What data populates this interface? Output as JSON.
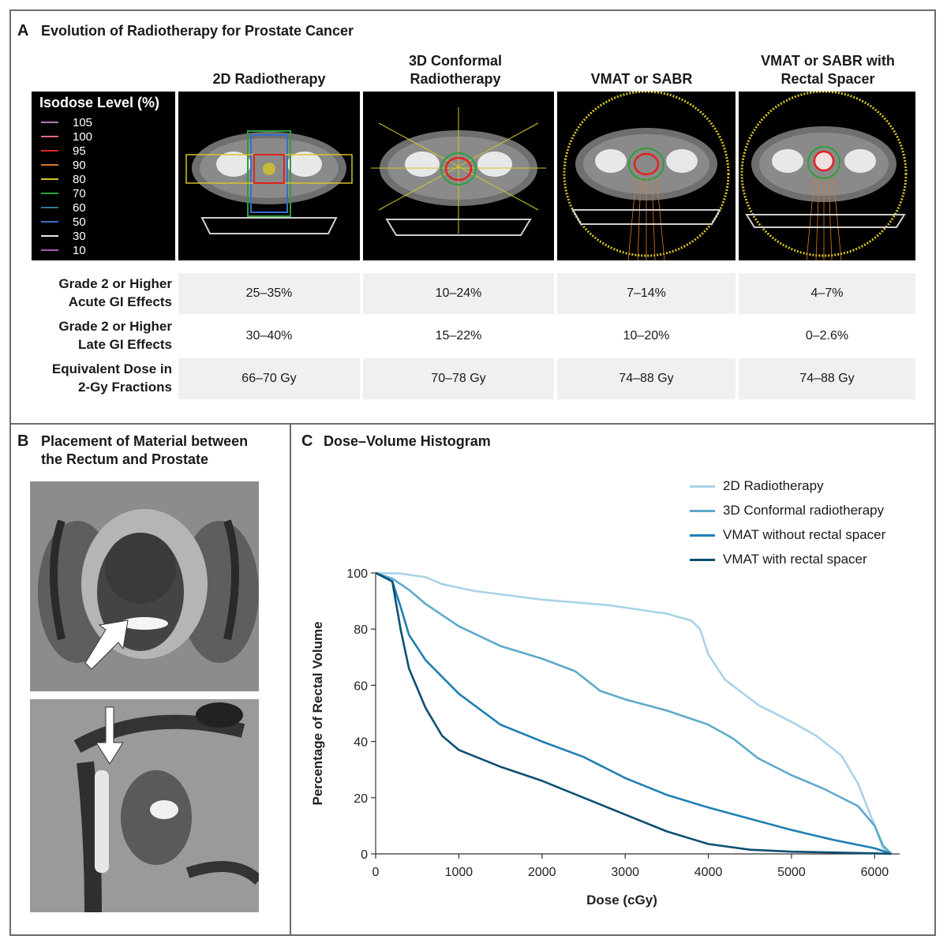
{
  "panel_a": {
    "letter": "A",
    "title": "Evolution of Radiotherapy for Prostate Cancer",
    "columns": [
      {
        "line1": "2D Radiotherapy",
        "line2": ""
      },
      {
        "line1": "3D Conformal",
        "line2": "Radiotherapy"
      },
      {
        "line1": "VMAT or SABR",
        "line2": ""
      },
      {
        "line1": "VMAT or SABR with",
        "line2": "Rectal Spacer"
      }
    ],
    "isodose_legend": {
      "title": "Isodose Level (%)",
      "levels": [
        {
          "value": "105",
          "color": "#b07ab8"
        },
        {
          "value": "100",
          "color": "#e86a7a"
        },
        {
          "value": "95",
          "color": "#e0241e"
        },
        {
          "value": "90",
          "color": "#d97a2b"
        },
        {
          "value": "80",
          "color": "#d6c42a"
        },
        {
          "value": "70",
          "color": "#2e9e3a"
        },
        {
          "value": "60",
          "color": "#2c7a8c"
        },
        {
          "value": "50",
          "color": "#3a6fc4"
        },
        {
          "value": "30",
          "color": "#e8e8e8"
        },
        {
          "value": "10",
          "color": "#a85ab0"
        }
      ]
    },
    "rows": [
      {
        "label_line1": "Grade 2 or Higher",
        "label_line2": "Acute GI Effects",
        "values": [
          "25–35%",
          "10–24%",
          "7–14%",
          "4–7%"
        ]
      },
      {
        "label_line1": "Grade 2 or Higher",
        "label_line2": "Late GI Effects",
        "values": [
          "30–40%",
          "15–22%",
          "10–20%",
          "0–2.6%"
        ]
      },
      {
        "label_line1": "Equivalent Dose in",
        "label_line2": "2-Gy Fractions",
        "values": [
          "66–70 Gy",
          "70–78 Gy",
          "74–88 Gy",
          "74–88 Gy"
        ]
      }
    ]
  },
  "panel_b": {
    "letter": "B",
    "title_line1": "Placement of Material between",
    "title_line2": "the Rectum and Prostate"
  },
  "panel_c": {
    "letter": "C",
    "title": "Dose–Volume Histogram"
  },
  "chart_data": {
    "type": "line",
    "title": "Dose–Volume Histogram",
    "xlabel": "Dose (cGy)",
    "ylabel": "Percentage of Rectal Volume",
    "xlim": [
      0,
      6300
    ],
    "ylim": [
      0,
      100
    ],
    "xticks": [
      0,
      1000,
      2000,
      3000,
      4000,
      5000,
      6000
    ],
    "yticks": [
      0,
      20,
      40,
      60,
      80,
      100
    ],
    "grid": false,
    "legend_position": "top-right",
    "series": [
      {
        "name": "2D Radiotherapy",
        "color": "#a9d3e6",
        "points": [
          [
            0,
            100
          ],
          [
            300,
            99.8
          ],
          [
            600,
            98.5
          ],
          [
            800,
            96
          ],
          [
            1200,
            93.5
          ],
          [
            2000,
            90.5
          ],
          [
            2800,
            88.5
          ],
          [
            3500,
            85.5
          ],
          [
            3800,
            83
          ],
          [
            3900,
            80
          ],
          [
            4000,
            71
          ],
          [
            4200,
            62
          ],
          [
            4600,
            53
          ],
          [
            5000,
            47
          ],
          [
            5300,
            42
          ],
          [
            5600,
            35
          ],
          [
            5800,
            25
          ],
          [
            6000,
            10
          ],
          [
            6100,
            2
          ],
          [
            6200,
            0
          ]
        ]
      },
      {
        "name": "3D Conformal radiotherapy",
        "color": "#5ea9cc",
        "points": [
          [
            0,
            100
          ],
          [
            200,
            98
          ],
          [
            400,
            94
          ],
          [
            600,
            89
          ],
          [
            1000,
            81
          ],
          [
            1500,
            74
          ],
          [
            2000,
            69.5
          ],
          [
            2400,
            65
          ],
          [
            2700,
            58
          ],
          [
            3000,
            55
          ],
          [
            3500,
            51
          ],
          [
            4000,
            46
          ],
          [
            4300,
            41
          ],
          [
            4600,
            34
          ],
          [
            5000,
            28
          ],
          [
            5400,
            23
          ],
          [
            5800,
            17
          ],
          [
            6000,
            10
          ],
          [
            6100,
            3
          ],
          [
            6200,
            0
          ]
        ]
      },
      {
        "name": "VMAT without rectal spacer",
        "color": "#1f7fb3",
        "points": [
          [
            0,
            100
          ],
          [
            200,
            97
          ],
          [
            300,
            88
          ],
          [
            400,
            78
          ],
          [
            600,
            69
          ],
          [
            1000,
            57
          ],
          [
            1500,
            46
          ],
          [
            2000,
            40
          ],
          [
            2500,
            34.5
          ],
          [
            3000,
            27
          ],
          [
            3500,
            21
          ],
          [
            4000,
            16.5
          ],
          [
            4500,
            12.5
          ],
          [
            5000,
            8.5
          ],
          [
            5500,
            5
          ],
          [
            6000,
            2
          ],
          [
            6200,
            0
          ]
        ]
      },
      {
        "name": "VMAT with rectal spacer",
        "color": "#0c4f73",
        "points": [
          [
            0,
            100
          ],
          [
            200,
            97
          ],
          [
            300,
            80
          ],
          [
            400,
            66
          ],
          [
            600,
            52
          ],
          [
            800,
            42
          ],
          [
            1000,
            37
          ],
          [
            1500,
            31
          ],
          [
            2000,
            26
          ],
          [
            2500,
            20
          ],
          [
            3000,
            14
          ],
          [
            3500,
            8
          ],
          [
            4000,
            3.5
          ],
          [
            4500,
            1.5
          ],
          [
            5000,
            0.8
          ],
          [
            6000,
            0.2
          ],
          [
            6200,
            0
          ]
        ]
      }
    ]
  }
}
